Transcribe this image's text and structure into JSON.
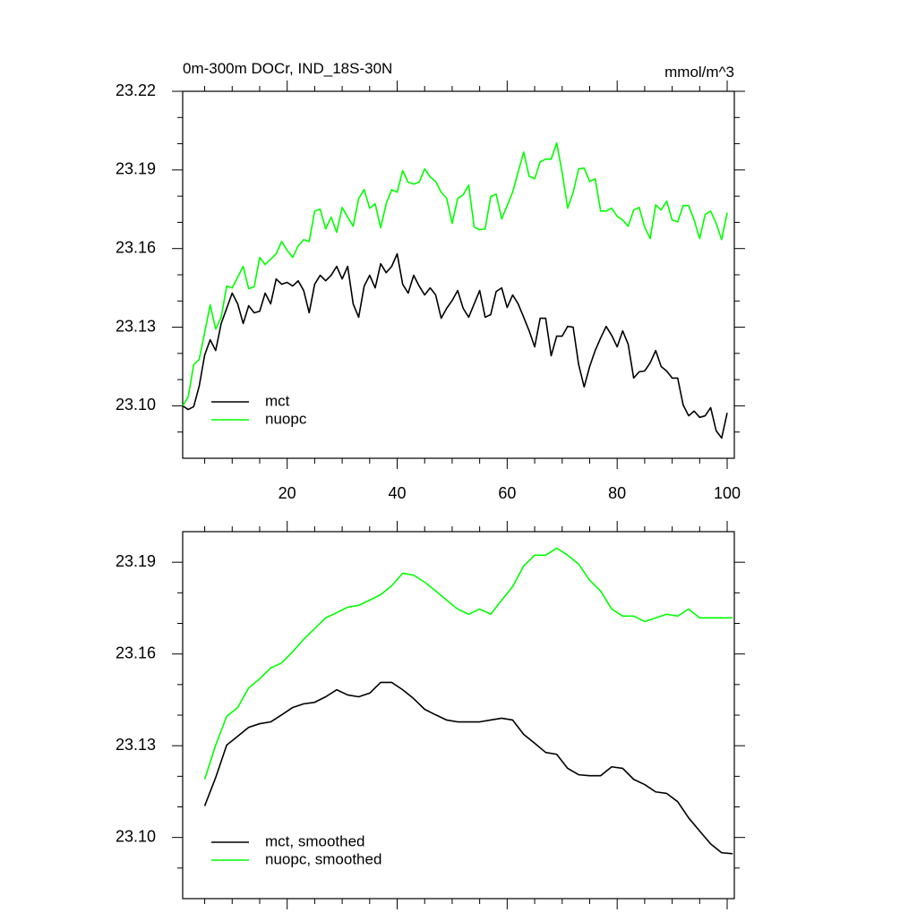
{
  "chart_data": [
    {
      "type": "line",
      "title": "0m-300m DOCr, IND_18S-30N",
      "units": "mmol/m^3",
      "x": [
        1,
        2,
        3,
        4,
        5,
        6,
        7,
        8,
        9,
        10,
        11,
        12,
        13,
        14,
        15,
        16,
        17,
        18,
        19,
        20,
        21,
        22,
        23,
        24,
        25,
        26,
        27,
        28,
        29,
        30,
        31,
        32,
        33,
        34,
        35,
        36,
        37,
        38,
        39,
        40,
        41,
        42,
        43,
        44,
        45,
        46,
        47,
        48,
        49,
        50,
        51,
        52,
        53,
        54,
        55,
        56,
        57,
        58,
        59,
        60,
        61,
        62,
        63,
        64,
        65,
        66,
        67,
        68,
        69,
        70,
        71,
        72,
        73,
        74,
        75,
        76,
        77,
        78,
        79,
        80,
        81,
        82,
        83,
        84,
        85,
        86,
        87,
        88,
        89,
        90,
        91,
        92,
        93,
        94,
        95,
        96,
        97,
        98,
        99,
        100
      ],
      "series": [
        {
          "name": "mct",
          "color": "#000000",
          "values": [
            23.1,
            23.0986,
            23.0997,
            23.1075,
            23.1194,
            23.1252,
            23.1211,
            23.1314,
            23.1372,
            23.143,
            23.1389,
            23.1314,
            23.1382,
            23.1355,
            23.1361,
            23.143,
            23.1389,
            23.1484,
            23.1464,
            23.1471,
            23.1457,
            23.1477,
            23.144,
            23.1355,
            23.1464,
            23.1498,
            23.1477,
            23.1498,
            23.1532,
            23.1484,
            23.1532,
            23.1389,
            23.1338,
            23.1457,
            23.1498,
            23.145,
            23.1542,
            23.1508,
            23.1532,
            23.158,
            23.1464,
            23.143,
            23.1498,
            23.1457,
            23.1423,
            23.145,
            23.1423,
            23.1334,
            23.1372,
            23.1402,
            23.144,
            23.1372,
            23.1338,
            23.1389,
            23.144,
            23.1338,
            23.1348,
            23.1436,
            23.145,
            23.1375,
            23.1423,
            23.1389,
            23.1338,
            23.1286,
            23.1225,
            23.1334,
            23.1334,
            23.1191,
            23.1266,
            23.1266,
            23.1303,
            23.13,
            23.1157,
            23.1072,
            23.115,
            23.1211,
            23.1259,
            23.1303,
            23.1269,
            23.1225,
            23.1286,
            23.1235,
            23.1106,
            23.113,
            23.1133,
            23.1164,
            23.1211,
            23.115,
            23.1133,
            23.1106,
            23.1106,
            23.1003,
            23.0962,
            23.098,
            23.0956,
            23.0962,
            23.0993,
            23.0905,
            23.0877,
            23.0973
          ]
        },
        {
          "name": "nuopc",
          "color": "#00ff00",
          "values": [
            23.1,
            23.1034,
            23.1157,
            23.1177,
            23.128,
            23.1385,
            23.1293,
            23.1338,
            23.1457,
            23.145,
            23.1491,
            23.1532,
            23.1447,
            23.1454,
            23.1566,
            23.1539,
            23.1559,
            23.158,
            23.1627,
            23.1593,
            23.1566,
            23.161,
            23.1634,
            23.1627,
            23.1743,
            23.175,
            23.1675,
            23.172,
            23.1662,
            23.1757,
            23.172,
            23.1685,
            23.1791,
            23.1825,
            23.1754,
            23.1771,
            23.1679,
            23.1771,
            23.1825,
            23.1815,
            23.1897,
            23.1853,
            23.1846,
            23.1853,
            23.1904,
            23.1873,
            23.1856,
            23.1815,
            23.1791,
            23.1696,
            23.1791,
            23.1805,
            23.1842,
            23.1682,
            23.1672,
            23.1675,
            23.1798,
            23.1808,
            23.1713,
            23.1764,
            23.1815,
            23.1893,
            23.1968,
            23.1876,
            23.1866,
            23.1931,
            23.1941,
            23.1941,
            23.2003,
            23.189,
            23.1754,
            23.1815,
            23.1904,
            23.1907,
            23.1856,
            23.1866,
            23.1743,
            23.1743,
            23.1754,
            23.1723,
            23.1709,
            23.1685,
            23.1747,
            23.1757,
            23.1682,
            23.1638,
            23.1767,
            23.1747,
            23.1781,
            23.1709,
            23.1702,
            23.1764,
            23.1764,
            23.1709,
            23.1638,
            23.173,
            23.1743,
            23.1696,
            23.1634,
            23.1737
          ]
        }
      ],
      "xlim": [
        1,
        101.3
      ],
      "ylim": [
        23.08,
        23.22
      ],
      "xticks": [
        20,
        40,
        60,
        80,
        100
      ],
      "xminorticks": [
        5,
        10,
        15,
        25,
        30,
        35,
        45,
        50,
        55,
        65,
        70,
        75,
        85,
        90,
        95
      ],
      "yticks": [
        {
          "value": 23.1,
          "label": "23.10"
        },
        23.13,
        23.16,
        23.19,
        23.22
      ],
      "yminorticks": [
        23.09,
        23.11,
        23.12,
        23.14,
        23.15,
        23.17,
        23.18,
        23.2,
        23.21
      ],
      "show_xtick_labels": true,
      "legend": "lower left",
      "grid": false
    },
    {
      "type": "line",
      "x": [
        5,
        7,
        9,
        11,
        13,
        15,
        17,
        19,
        21,
        23,
        25,
        27,
        29,
        31,
        33,
        35,
        37,
        39,
        41,
        43,
        45,
        47,
        49,
        51,
        53,
        55,
        57,
        59,
        61,
        63,
        65,
        67,
        69,
        71,
        73,
        75,
        77,
        79,
        81,
        83,
        85,
        87,
        89,
        91,
        93,
        95,
        97,
        99,
        101
      ],
      "series": [
        {
          "name": "mct, smoothed",
          "color": "#000000",
          "values": [
            23.1103,
            23.1196,
            23.1302,
            23.1331,
            23.136,
            23.1372,
            23.1378,
            23.1401,
            23.1425,
            23.1437,
            23.1442,
            23.146,
            23.1483,
            23.1466,
            23.146,
            23.1472,
            23.1507,
            23.1507,
            23.1483,
            23.1454,
            23.1419,
            23.1401,
            23.1384,
            23.1378,
            23.1378,
            23.1378,
            23.1384,
            23.139,
            23.1384,
            23.1337,
            23.1308,
            23.1278,
            23.1272,
            23.1226,
            23.1205,
            23.1202,
            23.1202,
            23.1231,
            23.1226,
            23.119,
            23.1173,
            23.1149,
            23.1144,
            23.1117,
            23.1064,
            23.1021,
            23.0979,
            23.095,
            23.0947
          ]
        },
        {
          "name": "nuopc, smoothed",
          "color": "#00ff00",
          "values": [
            23.119,
            23.1302,
            23.1396,
            23.1425,
            23.1489,
            23.1519,
            23.1554,
            23.1571,
            23.1607,
            23.1648,
            23.1683,
            23.1718,
            23.1735,
            23.1753,
            23.1759,
            23.1776,
            23.1794,
            23.1823,
            23.1864,
            23.1858,
            23.1835,
            23.1806,
            23.1776,
            23.1747,
            23.173,
            23.1747,
            23.173,
            23.1776,
            23.182,
            23.1888,
            23.1923,
            23.1923,
            23.1946,
            23.1923,
            23.1894,
            23.1841,
            23.1806,
            23.1747,
            23.1724,
            23.1724,
            23.1706,
            23.1718,
            23.173,
            23.1724,
            23.1747,
            23.1718,
            23.1718,
            23.1718,
            23.1718
          ]
        }
      ],
      "xlim": [
        1,
        101.3
      ],
      "ylim": [
        23.08,
        23.2
      ],
      "xticks": [
        20,
        40,
        60,
        80,
        100
      ],
      "xminorticks": [
        5,
        10,
        15,
        25,
        30,
        35,
        45,
        50,
        55,
        65,
        70,
        75,
        85,
        90,
        95
      ],
      "yticks": [
        {
          "value": 23.1,
          "label": "23.10"
        },
        23.13,
        23.16,
        23.19
      ],
      "yminorticks": [
        23.09,
        23.11,
        23.12,
        23.14,
        23.15,
        23.17,
        23.18
      ],
      "show_xtick_labels": false,
      "legend": "lower left",
      "grid": false
    }
  ]
}
